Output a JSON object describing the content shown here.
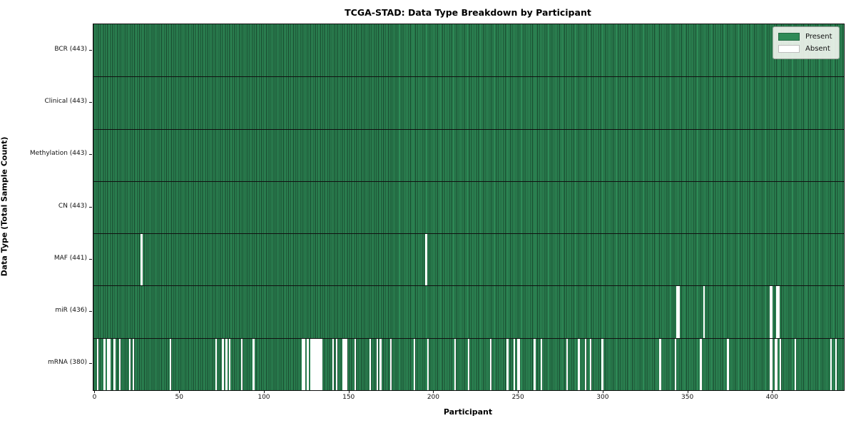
{
  "figure": {
    "title": "TCGA-STAD: Data Type Breakdown by Participant",
    "xlabel": "Participant",
    "ylabel": "Data Type (Total Sample Count)"
  },
  "chart_data": {
    "type": "heatmap",
    "title": "TCGA-STAD: Data Type Breakdown by Participant",
    "xlabel": "Participant",
    "ylabel": "Data Type (Total Sample Count)",
    "n_participants": 443,
    "x_ticks": [
      0,
      50,
      100,
      150,
      200,
      250,
      300,
      350,
      400
    ],
    "legend_position": "upper right",
    "grid": false,
    "colors": {
      "present": "#2e8b57",
      "absent": "#ffffff",
      "bar_edge": "#16422a",
      "spine": "#111111"
    },
    "legend": [
      {
        "label": "Present",
        "color": "#2e8b57"
      },
      {
        "label": "Absent",
        "color": "#ffffff"
      }
    ],
    "rows": [
      {
        "name": "bcr",
        "label": "BCR (443)",
        "present_count": 443,
        "absent_participants": []
      },
      {
        "name": "clinical",
        "label": "Clinical (443)",
        "present_count": 443,
        "absent_participants": []
      },
      {
        "name": "methylation",
        "label": "Methylation (443)",
        "present_count": 443,
        "absent_participants": []
      },
      {
        "name": "cn",
        "label": "CN (443)",
        "present_count": 443,
        "absent_participants": []
      },
      {
        "name": "maf",
        "label": "MAF (441)",
        "present_count": 441,
        "absent_participants": [
          28,
          196
        ]
      },
      {
        "name": "mir",
        "label": "miR (436)",
        "present_count": 436,
        "absent_participants": [
          344,
          345,
          360,
          399,
          400,
          403,
          404
        ]
      },
      {
        "name": "mrna",
        "label": "mRNA (380)",
        "present_count": 380,
        "absent_participants": [
          2,
          6,
          8,
          9,
          12,
          15,
          21,
          23,
          45,
          72,
          76,
          78,
          80,
          87,
          94,
          123,
          124,
          126,
          128,
          129,
          130,
          131,
          132,
          133,
          134,
          141,
          143,
          147,
          148,
          149,
          154,
          163,
          167,
          169,
          175,
          189,
          197,
          213,
          221,
          234,
          244,
          248,
          250,
          251,
          260,
          264,
          279,
          286,
          290,
          293,
          300,
          334,
          343,
          358,
          374,
          399,
          400,
          402,
          403,
          405,
          414,
          435,
          438
        ]
      }
    ]
  }
}
